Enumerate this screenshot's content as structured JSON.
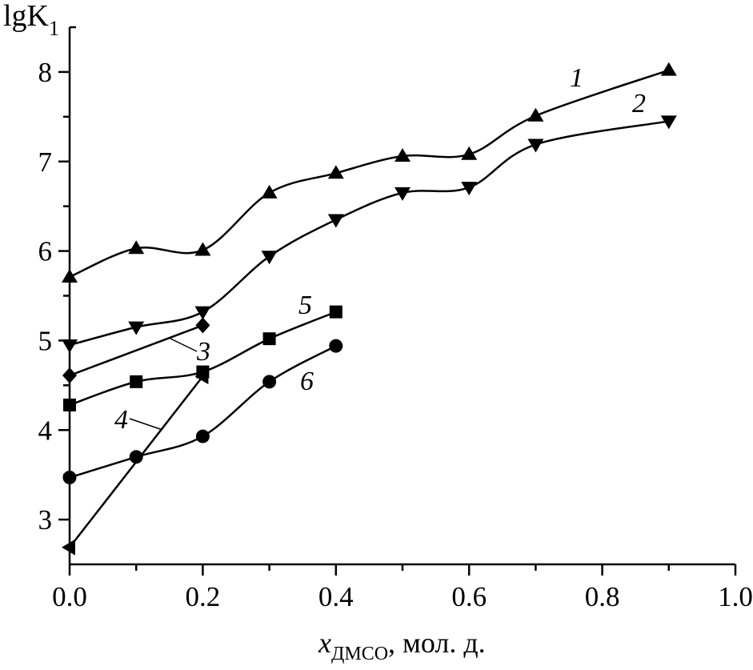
{
  "chart_data": {
    "type": "line",
    "ylabel_main": "lgK",
    "ylabel_sub": "1",
    "xlabel_main": "x",
    "xlabel_sub": "ДМСО",
    "xlabel_rest": ", мол. д.",
    "xlim": [
      0,
      1.0
    ],
    "ylim": [
      2.5,
      8.5
    ],
    "xticks": [
      "0.0",
      "0.2",
      "0.4",
      "0.6",
      "0.8",
      "1.0"
    ],
    "yticks": [
      "3",
      "4",
      "5",
      "6",
      "7",
      "8"
    ],
    "grid": false,
    "color": "#000000",
    "series": [
      {
        "name": "1",
        "marker": "triangle-up",
        "smooth": true,
        "x": [
          0,
          0.1,
          0.2,
          0.3,
          0.4,
          0.5,
          0.6,
          0.7,
          0.9
        ],
        "y": [
          5.71,
          6.03,
          6.01,
          6.65,
          6.87,
          7.06,
          7.08,
          7.51,
          8.02
        ]
      },
      {
        "name": "2",
        "marker": "triangle-down",
        "smooth": true,
        "x": [
          0,
          0.1,
          0.2,
          0.3,
          0.4,
          0.5,
          0.6,
          0.7,
          0.9
        ],
        "y": [
          4.95,
          5.15,
          5.32,
          5.94,
          6.35,
          6.65,
          6.71,
          7.19,
          7.45
        ]
      },
      {
        "name": "3",
        "marker": "diamond",
        "smooth": false,
        "x": [
          0,
          0.2
        ],
        "y": [
          4.61,
          5.17
        ]
      },
      {
        "name": "4",
        "marker": "triangle-left",
        "smooth": false,
        "x": [
          0,
          0.2
        ],
        "y": [
          2.69,
          4.6
        ]
      },
      {
        "name": "5",
        "marker": "square",
        "smooth": true,
        "x": [
          0,
          0.1,
          0.2,
          0.3,
          0.4
        ],
        "y": [
          4.28,
          4.54,
          4.65,
          5.02,
          5.32
        ]
      },
      {
        "name": "6",
        "marker": "circle",
        "smooth": true,
        "x": [
          0,
          0.1,
          0.2,
          0.3,
          0.4
        ],
        "y": [
          3.47,
          3.7,
          3.93,
          4.54,
          4.94
        ]
      }
    ]
  }
}
